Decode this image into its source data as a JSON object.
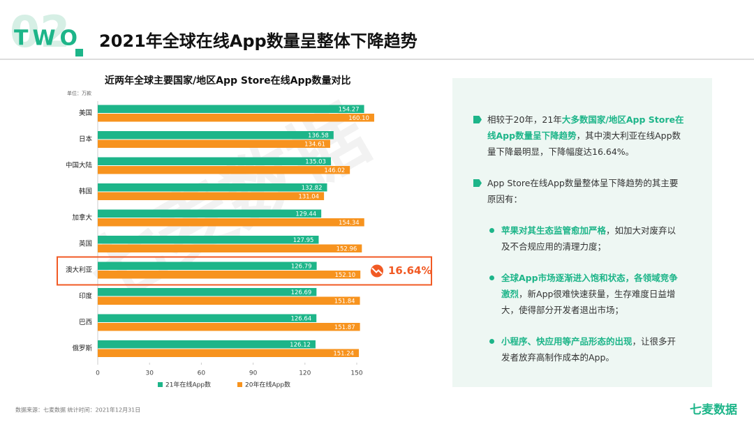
{
  "header": {
    "badge": "TWO",
    "number": "02",
    "title": "2021年全球在线App数量呈整体下降趋势"
  },
  "watermark": "七麦数据",
  "chart_data": {
    "type": "bar",
    "orientation": "horizontal",
    "title": "近两年全球主要国家/地区App Store在线App数量对比",
    "unit": "单位：万款",
    "categories": [
      "美国",
      "日本",
      "中国大陆",
      "韩国",
      "加拿大",
      "英国",
      "澳大利亚",
      "印度",
      "巴西",
      "俄罗斯"
    ],
    "series": [
      {
        "name": "21年在线App数",
        "color": "#1db589",
        "values": [
          154.27,
          136.58,
          135.03,
          132.82,
          129.44,
          127.95,
          126.79,
          126.69,
          126.64,
          126.12
        ],
        "value_labels": [
          "154.27",
          "136.58",
          "135.03",
          "132.82",
          "129.44",
          "127.95",
          "126.79",
          "126.69",
          "126.64",
          "126.12"
        ]
      },
      {
        "name": "20年在线App数",
        "color": "#f7931e",
        "values": [
          160.1,
          134.61,
          146.02,
          131.04,
          154.34,
          152.96,
          152.1,
          151.84,
          151.87,
          151.24
        ],
        "value_labels": [
          "160.10",
          "134.61",
          "146.02",
          "131.04",
          "154.34",
          "152.96",
          "152.10",
          "151.84",
          "151.87",
          "151.24"
        ]
      }
    ],
    "xlim": [
      0,
      150
    ],
    "xticks": [
      0,
      30,
      60,
      90,
      120,
      150
    ],
    "legend": "bottom",
    "highlight": {
      "category_index": 6,
      "label": "16.64%",
      "color": "#f15a24"
    }
  },
  "panel": {
    "summary": [
      "相较于20年，21年",
      "大多数国家/地区App Store在线App数量呈下降趋势",
      "，其中澳大利亚在线App数量下降最明显，下降幅度达16.64%。"
    ],
    "reasons_intro": "App Store在线App数量整体呈下降趋势的其主要原因有：",
    "reasons": [
      [
        "苹果对其生态监管愈加严格",
        "，如加大对废弃以及不合规应用的清理力度；"
      ],
      [
        "全球App市场逐渐进入饱和状态，各领域竞争激烈",
        "，新App很难快速获量，生存难度日益增大，使得部分开发者退出市场；"
      ],
      [
        "小程序、快应用等产品形态的出现",
        "，让很多开发者放弃高制作成本的App。"
      ]
    ]
  },
  "footer": {
    "source": "数据来源：七麦数据  统计时间：2021年12月31日",
    "logo": "七麦数据"
  }
}
